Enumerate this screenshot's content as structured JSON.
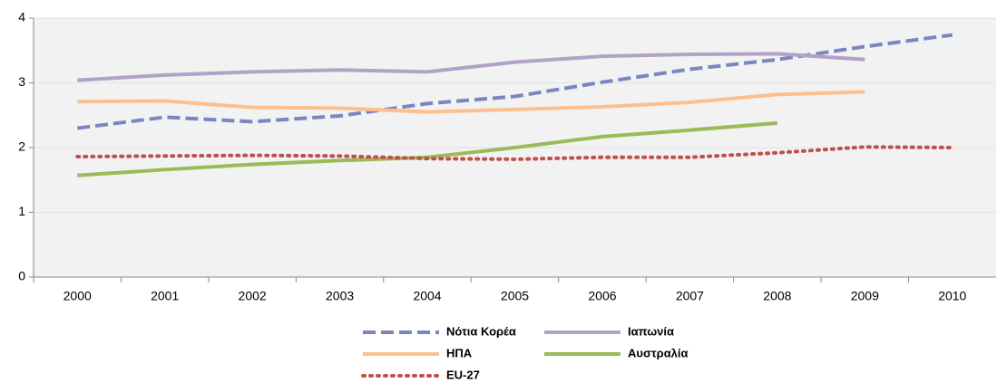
{
  "chart_data": {
    "type": "line",
    "categories": [
      "2000",
      "2001",
      "2002",
      "2003",
      "2004",
      "2005",
      "2006",
      "2007",
      "2008",
      "2009",
      "2010"
    ],
    "series": [
      {
        "name": "Νότια Κορέα",
        "color": "#7b86c0",
        "dash": "dashed",
        "values": [
          2.3,
          2.47,
          2.4,
          2.49,
          2.68,
          2.79,
          3.01,
          3.21,
          3.36,
          3.56,
          3.74
        ]
      },
      {
        "name": "Ιαπωνία",
        "color": "#b3a2c7",
        "dash": "solid",
        "values": [
          3.04,
          3.12,
          3.17,
          3.2,
          3.17,
          3.32,
          3.41,
          3.44,
          3.45,
          3.36,
          null
        ]
      },
      {
        "name": "ΗΠΑ",
        "color": "#fac090",
        "dash": "solid",
        "values": [
          2.71,
          2.72,
          2.62,
          2.61,
          2.55,
          2.59,
          2.63,
          2.7,
          2.82,
          2.86,
          null
        ]
      },
      {
        "name": "Αυστραλία",
        "color": "#9bbb59",
        "dash": "solid",
        "values": [
          1.57,
          1.66,
          1.74,
          1.8,
          1.85,
          2.0,
          2.17,
          2.27,
          2.38,
          null,
          null
        ]
      },
      {
        "name": "EU-27",
        "color": "#c0504d",
        "dash": "dotted",
        "values": [
          1.86,
          1.87,
          1.88,
          1.87,
          1.83,
          1.82,
          1.85,
          1.85,
          1.92,
          2.01,
          2.0
        ]
      }
    ],
    "ylim": [
      0,
      4
    ],
    "yticks": [
      0,
      1,
      2,
      3,
      4
    ],
    "grid": true,
    "legend": "bottom"
  }
}
